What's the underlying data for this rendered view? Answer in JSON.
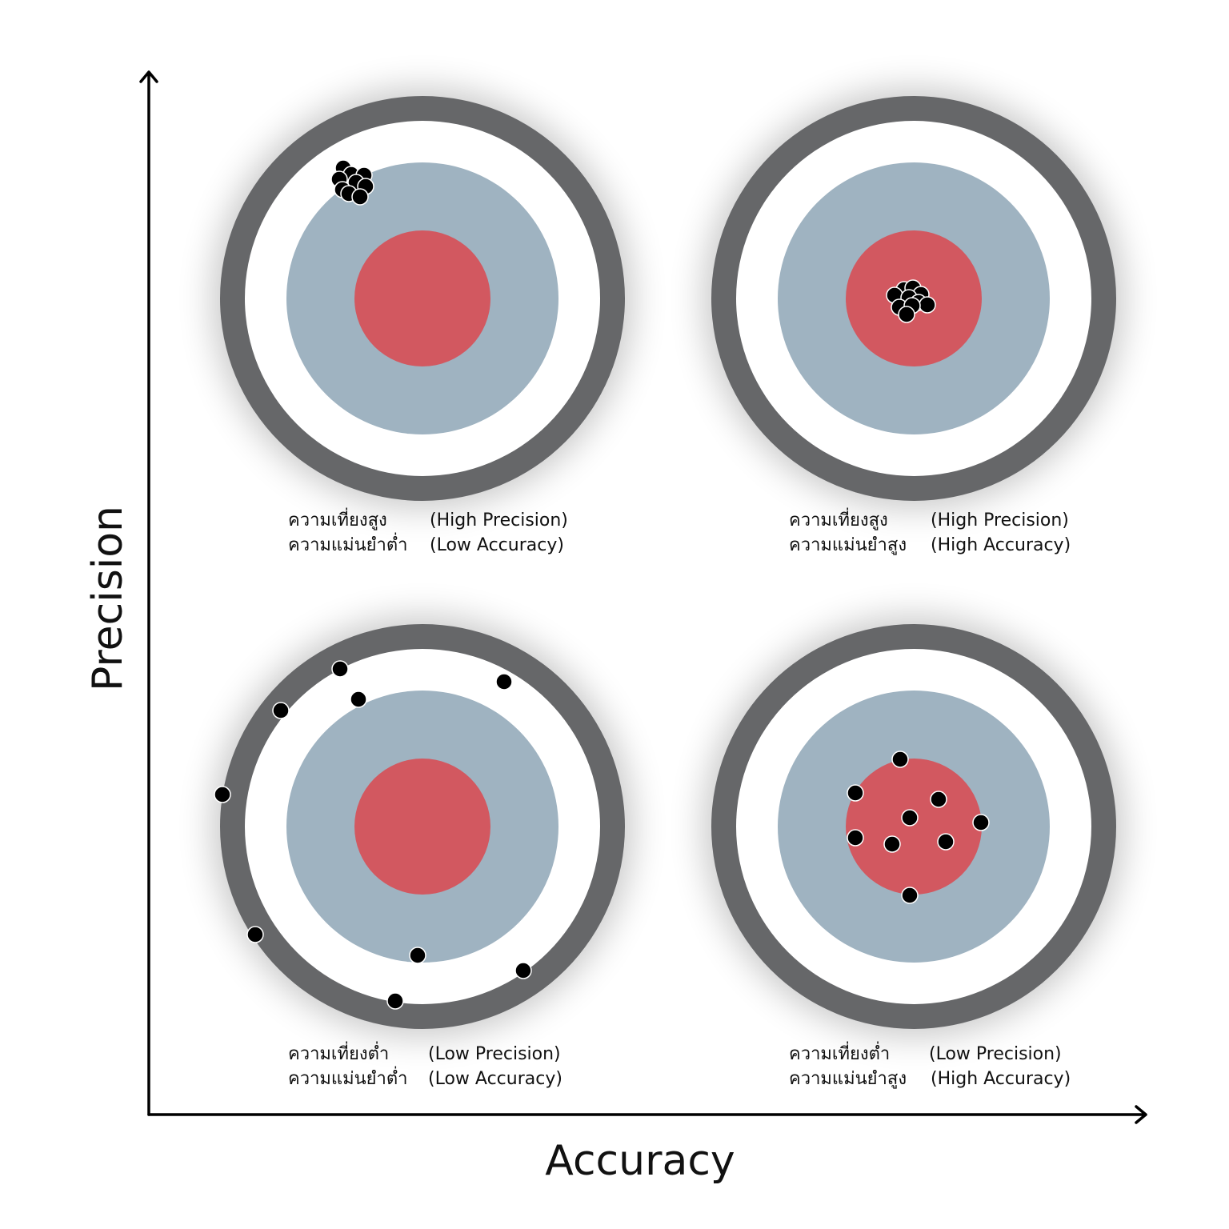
{
  "axes": {
    "y_label": "Precision",
    "x_label": "Accuracy"
  },
  "panels": [
    {
      "thai": [
        "ความเที่ยงสูง",
        "ความแม่นยำต่ำ"
      ],
      "english": [
        "(High Precision)",
        "(Low Accuracy)"
      ]
    },
    {
      "thai": [
        "ความเที่ยงสูง",
        "ความแม่นยำสูง"
      ],
      "english": [
        "(High Precision)",
        "(High Accuracy)"
      ]
    },
    {
      "thai": [
        "ความเที่ยงต่ำ",
        "ความแม่นยำต่ำ"
      ],
      "english": [
        "(Low Precision)",
        "(Low Accuracy)"
      ]
    },
    {
      "thai": [
        "ความเที่ยงต่ำ",
        "ความแม่นยำสูง"
      ],
      "english": [
        "(Low Precision)",
        "(High Accuracy)"
      ]
    }
  ]
}
